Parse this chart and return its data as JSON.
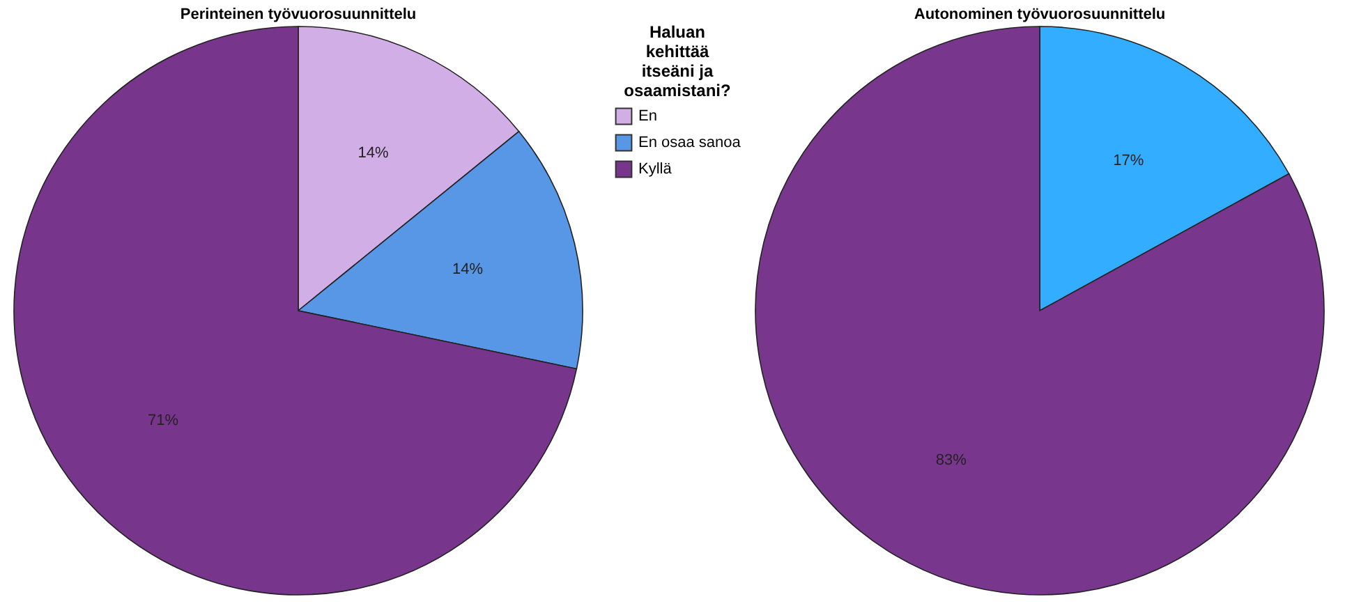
{
  "chart_data": [
    {
      "type": "pie",
      "title": "Perinteinen työvuorosuunnittelu",
      "legend_title": "Haluan kehittää itseäni ja osaamistani?",
      "legend": "right",
      "categories": [
        "En",
        "En osaa sanoa",
        "Kyllä"
      ],
      "values": [
        14,
        14,
        71
      ],
      "value_labels": [
        "14%",
        "14%",
        "71%"
      ],
      "colors": [
        "#d2aee6",
        "#5797e6",
        "#77358c"
      ]
    },
    {
      "type": "pie",
      "title": "Autonominen työvuorosuunnittelu",
      "categories": [
        null,
        null
      ],
      "values": [
        17,
        83
      ],
      "value_labels": [
        "17%",
        "83%"
      ],
      "colors": [
        "#33adff",
        "#78368d"
      ]
    }
  ]
}
